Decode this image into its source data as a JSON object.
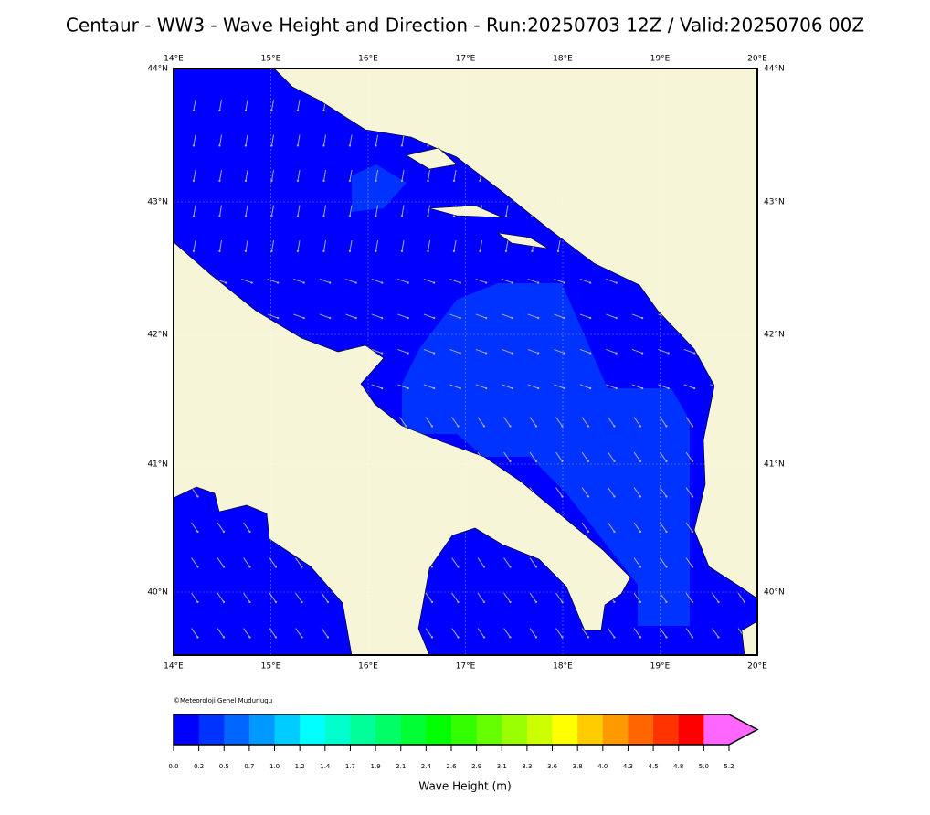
{
  "title": "Centaur - WW3 - Wave Height and Direction - Run:20250703 12Z / Valid:20250706 00Z",
  "map": {
    "lon_labels": [
      "14°E",
      "15°E",
      "16°E",
      "17°E",
      "18°E",
      "19°E",
      "20°E"
    ],
    "lat_labels": [
      "44°N",
      "43°N",
      "42°N",
      "41°N",
      "40°N"
    ],
    "credit": "©Meteoroloji Genel Mudurlugu"
  },
  "colorbar": {
    "colors": [
      "#0000ff",
      "#0033ff",
      "#0066ff",
      "#0099ff",
      "#00ccff",
      "#00ffff",
      "#00ffcc",
      "#00ff99",
      "#00ff66",
      "#00ff33",
      "#00ff00",
      "#33ff00",
      "#66ff00",
      "#99ff00",
      "#ccff00",
      "#ffff00",
      "#ffcc00",
      "#ff9900",
      "#ff6600",
      "#ff3300",
      "#ff0000",
      "#ff66ff"
    ],
    "tick_labels": [
      "0.0",
      "0.2",
      "0.5",
      "0.7",
      "1.0",
      "1.2",
      "1.4",
      "1.7",
      "1.9",
      "2.1",
      "2.4",
      "2.6",
      "2.9",
      "3.1",
      "3.3",
      "3.6",
      "3.8",
      "4.0",
      "4.3",
      "4.5",
      "4.8",
      "5.0",
      "5.2"
    ],
    "label": "Wave Height (m)"
  }
}
